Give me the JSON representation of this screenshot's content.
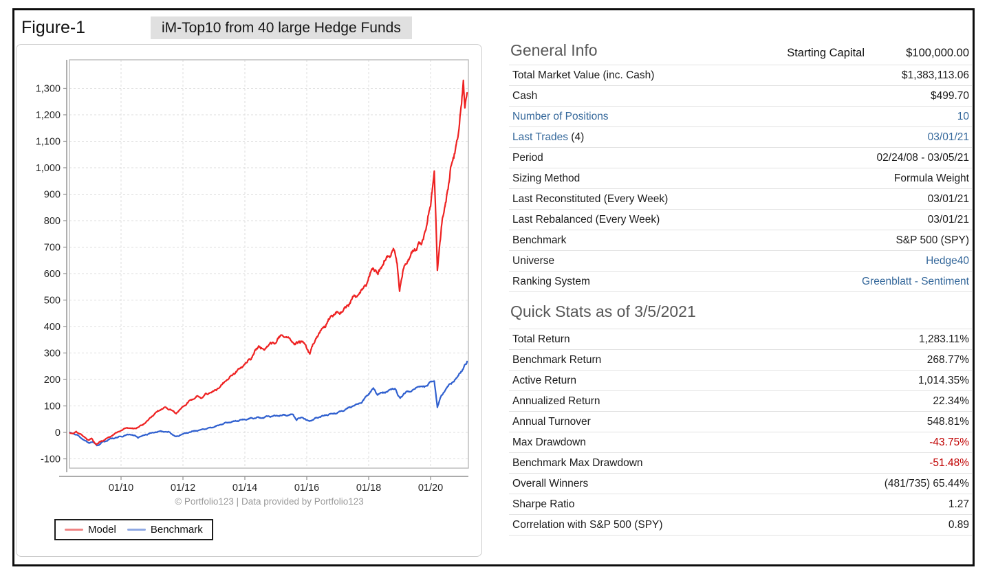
{
  "figure": {
    "label": "Figure-1",
    "title": "iM-Top10 from 40 large Hedge Funds"
  },
  "chart": {
    "attribution": "© Portfolio123 | Data provided by Portfolio123",
    "legend": [
      {
        "label": "Model",
        "swatch_color": "#f08484"
      },
      {
        "label": "Benchmark",
        "swatch_color": "#8fa9e4"
      }
    ]
  },
  "chart_data": {
    "type": "line",
    "title": "iM-Top10 from 40 large Hedge Funds",
    "xlabel": "",
    "ylabel": "",
    "grid": true,
    "legend_position": "bottom-left",
    "ylim": [
      -135,
      1408
    ],
    "y_tick_values": [
      -100,
      0,
      100,
      200,
      300,
      400,
      500,
      600,
      700,
      800,
      900,
      1000,
      1100,
      1200,
      1300
    ],
    "x_tick_labels": [
      "01/10",
      "01/12",
      "01/14",
      "01/16",
      "01/18",
      "01/20"
    ],
    "x_tick_values": [
      2010,
      2012,
      2014,
      2016,
      2018,
      2020
    ],
    "series": [
      {
        "name": "Model",
        "color": "#ee2222",
        "points": [
          [
            2008.35,
            0
          ],
          [
            2008.45,
            -4
          ],
          [
            2008.55,
            3
          ],
          [
            2008.7,
            -8
          ],
          [
            2008.85,
            -22
          ],
          [
            2008.95,
            -30
          ],
          [
            2009.05,
            -24
          ],
          [
            2009.2,
            -45
          ],
          [
            2009.35,
            -34
          ],
          [
            2009.5,
            -27
          ],
          [
            2009.65,
            -17
          ],
          [
            2009.8,
            -5
          ],
          [
            2010.0,
            8
          ],
          [
            2010.2,
            18
          ],
          [
            2010.4,
            12
          ],
          [
            2010.6,
            22
          ],
          [
            2010.8,
            38
          ],
          [
            2011.0,
            62
          ],
          [
            2011.2,
            80
          ],
          [
            2011.45,
            95
          ],
          [
            2011.6,
            88
          ],
          [
            2011.78,
            70
          ],
          [
            2011.9,
            85
          ],
          [
            2012.05,
            100
          ],
          [
            2012.25,
            122
          ],
          [
            2012.45,
            138
          ],
          [
            2012.6,
            130
          ],
          [
            2012.75,
            142
          ],
          [
            2013.0,
            155
          ],
          [
            2013.2,
            175
          ],
          [
            2013.45,
            200
          ],
          [
            2013.7,
            225
          ],
          [
            2013.95,
            255
          ],
          [
            2014.2,
            280
          ],
          [
            2014.45,
            325
          ],
          [
            2014.6,
            310
          ],
          [
            2014.75,
            330
          ],
          [
            2015.0,
            345
          ],
          [
            2015.2,
            362
          ],
          [
            2015.45,
            357
          ],
          [
            2015.6,
            332
          ],
          [
            2015.8,
            345
          ],
          [
            2015.95,
            328
          ],
          [
            2016.1,
            297
          ],
          [
            2016.3,
            360
          ],
          [
            2016.5,
            390
          ],
          [
            2016.7,
            420
          ],
          [
            2016.9,
            445
          ],
          [
            2017.1,
            460
          ],
          [
            2017.3,
            475
          ],
          [
            2017.5,
            505
          ],
          [
            2017.7,
            520
          ],
          [
            2017.9,
            560
          ],
          [
            2018.05,
            600
          ],
          [
            2018.15,
            625
          ],
          [
            2018.3,
            590
          ],
          [
            2018.5,
            645
          ],
          [
            2018.65,
            665
          ],
          [
            2018.8,
            695
          ],
          [
            2018.92,
            640
          ],
          [
            2019.0,
            535
          ],
          [
            2019.15,
            625
          ],
          [
            2019.3,
            655
          ],
          [
            2019.5,
            700
          ],
          [
            2019.7,
            720
          ],
          [
            2019.85,
            760
          ],
          [
            2020.0,
            860
          ],
          [
            2020.12,
            990
          ],
          [
            2020.22,
            618
          ],
          [
            2020.35,
            780
          ],
          [
            2020.5,
            880
          ],
          [
            2020.65,
            990
          ],
          [
            2020.8,
            1060
          ],
          [
            2020.9,
            1120
          ],
          [
            2021.0,
            1240
          ],
          [
            2021.06,
            1330
          ],
          [
            2021.11,
            1230
          ],
          [
            2021.18,
            1283
          ]
        ]
      },
      {
        "name": "Benchmark",
        "color": "#3060cf",
        "points": [
          [
            2008.35,
            0
          ],
          [
            2008.5,
            -6
          ],
          [
            2008.7,
            -20
          ],
          [
            2008.95,
            -40
          ],
          [
            2009.08,
            -34
          ],
          [
            2009.22,
            -50
          ],
          [
            2009.4,
            -38
          ],
          [
            2009.6,
            -28
          ],
          [
            2009.8,
            -20
          ],
          [
            2010.0,
            -15
          ],
          [
            2010.3,
            -8
          ],
          [
            2010.55,
            -18
          ],
          [
            2010.8,
            -8
          ],
          [
            2011.0,
            -2
          ],
          [
            2011.3,
            4
          ],
          [
            2011.55,
            2
          ],
          [
            2011.78,
            -18
          ],
          [
            2011.95,
            -8
          ],
          [
            2012.2,
            2
          ],
          [
            2012.4,
            6
          ],
          [
            2012.75,
            12
          ],
          [
            2013.0,
            22
          ],
          [
            2013.3,
            32
          ],
          [
            2013.6,
            40
          ],
          [
            2013.9,
            48
          ],
          [
            2014.2,
            52
          ],
          [
            2014.5,
            56
          ],
          [
            2014.75,
            60
          ],
          [
            2015.0,
            62
          ],
          [
            2015.3,
            66
          ],
          [
            2015.55,
            68
          ],
          [
            2015.67,
            48
          ],
          [
            2015.85,
            56
          ],
          [
            2016.05,
            42
          ],
          [
            2016.3,
            55
          ],
          [
            2016.6,
            64
          ],
          [
            2016.9,
            72
          ],
          [
            2017.2,
            85
          ],
          [
            2017.5,
            98
          ],
          [
            2017.8,
            118
          ],
          [
            2018.05,
            152
          ],
          [
            2018.15,
            162
          ],
          [
            2018.3,
            142
          ],
          [
            2018.5,
            152
          ],
          [
            2018.7,
            162
          ],
          [
            2018.85,
            168
          ],
          [
            2018.95,
            138
          ],
          [
            2019.02,
            128
          ],
          [
            2019.2,
            152
          ],
          [
            2019.45,
            165
          ],
          [
            2019.6,
            172
          ],
          [
            2019.8,
            170
          ],
          [
            2020.0,
            188
          ],
          [
            2020.12,
            200
          ],
          [
            2020.22,
            96
          ],
          [
            2020.35,
            140
          ],
          [
            2020.5,
            165
          ],
          [
            2020.65,
            185
          ],
          [
            2020.8,
            195
          ],
          [
            2020.92,
            225
          ],
          [
            2021.05,
            240
          ],
          [
            2021.1,
            252
          ],
          [
            2021.18,
            268
          ]
        ]
      }
    ]
  },
  "general_info": {
    "heading": "General Info",
    "header": {
      "label": "Starting Capital",
      "value": "$100,000.00"
    },
    "rows": [
      {
        "label": "Total Market Value (inc. Cash)",
        "value": "$1,383,113.06"
      },
      {
        "label": "Cash",
        "value": "$499.70"
      },
      {
        "label": "Number of Positions",
        "value": "10",
        "link": true,
        "value_link": true
      },
      {
        "label": "Last Trades",
        "label_suffix": " (4)",
        "value": "03/01/21",
        "link": true,
        "value_link": true
      },
      {
        "label": "Period",
        "value": "02/24/08 - 03/05/21"
      },
      {
        "label": "Sizing Method",
        "value": "Formula Weight"
      },
      {
        "label": "Last Reconstituted (Every Week)",
        "value": "03/01/21"
      },
      {
        "label": "Last Rebalanced (Every Week)",
        "value": "03/01/21"
      },
      {
        "label": "Benchmark",
        "value": "S&P 500 (SPY)"
      },
      {
        "label": "Universe",
        "value": "Hedge40",
        "value_link": true
      },
      {
        "label": "Ranking System",
        "value": "Greenblatt - Sentiment",
        "value_link": true
      }
    ]
  },
  "quick_stats": {
    "heading": "Quick Stats as of 3/5/2021",
    "rows": [
      {
        "label": "Total Return",
        "value": "1,283.11%"
      },
      {
        "label": "Benchmark Return",
        "value": "268.77%"
      },
      {
        "label": "Active Return",
        "value": "1,014.35%"
      },
      {
        "label": "Annualized Return",
        "value": "22.34%"
      },
      {
        "label": "Annual Turnover",
        "value": "548.81%"
      },
      {
        "label": "Max Drawdown",
        "value": "-43.75%",
        "negative": true
      },
      {
        "label": "Benchmark Max Drawdown",
        "value": "-51.48%",
        "negative": true
      },
      {
        "label": "Overall Winners",
        "value": "(481/735) 65.44%"
      },
      {
        "label": "Sharpe Ratio",
        "value": "1.27"
      },
      {
        "label": "Correlation with S&P 500 (SPY)",
        "value": "0.89"
      }
    ]
  }
}
